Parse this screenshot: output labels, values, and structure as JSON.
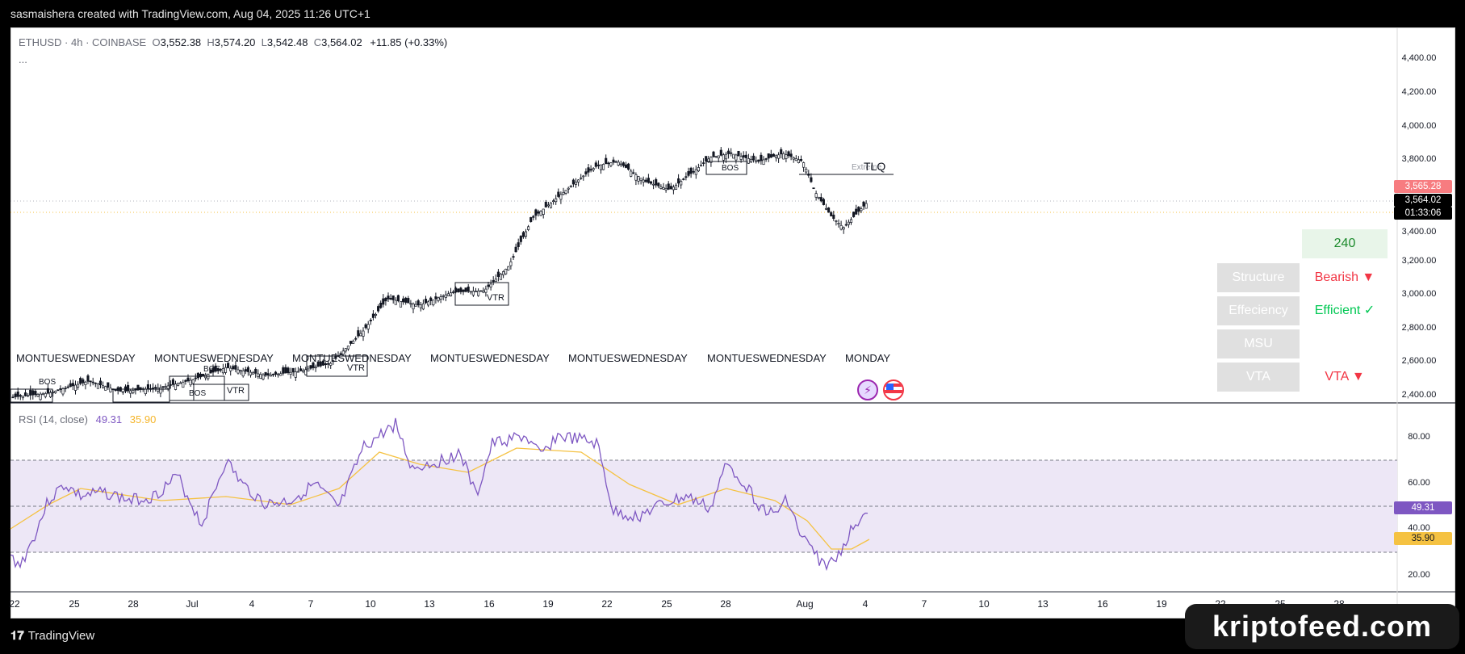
{
  "header": {
    "attribution": "sasmaishera created with TradingView.com, Aug 04, 2025 11:26 UTC+1"
  },
  "legend": {
    "symbol": "ETHUSD · 4h · COINBASE",
    "open_key": "O",
    "open": "3,552.38",
    "high_key": "H",
    "high": "3,574.20",
    "low_key": "L",
    "low": "3,542.48",
    "close_key": "C",
    "close": "3,564.02",
    "change": "+11.85 (+0.33%)",
    "more": "..."
  },
  "price_axis": {
    "labels": [
      "4,400.00",
      "4,200.00",
      "4,000.00",
      "3,800.00",
      "3,200.00",
      "3,000.00",
      "2,800.00",
      "2,600.00",
      "2,400.00"
    ],
    "tag_upper": "3,565.28",
    "tag_current": "3,564.02",
    "tag_countdown": "01:33:06",
    "hidden_label": "3,400.00"
  },
  "rsi": {
    "label": "RSI (14, close)",
    "rsi_value": "49.31",
    "ma_value": "35.90",
    "axis_labels": [
      "80.00",
      "60.00",
      "40.00",
      "20.00"
    ],
    "tag_rsi": "49.31",
    "tag_ma": "35.90"
  },
  "time_axis": {
    "labels": [
      "22",
      "25",
      "28",
      "Jul",
      "4",
      "7",
      "10",
      "13",
      "16",
      "19",
      "22",
      "25",
      "28",
      "Aug",
      "4",
      "7",
      "10",
      "13",
      "16",
      "19",
      "22",
      "25",
      "28"
    ]
  },
  "chart_annotations": {
    "bos": "BOS",
    "vtr": "VTR",
    "tlq": "TLQ",
    "extreme": "Extreme",
    "day_labels": [
      "MONTUESWEDNESDAY",
      "MONTUESWEDNESDAY",
      "MONTUESWEDNESDAY",
      "MONTUESWEDNESDAY",
      "MONTUESWEDNESDAY",
      "MONTUESWEDNESDAY",
      "MONDAY"
    ]
  },
  "info_table": {
    "timeframe": "240",
    "rows": [
      {
        "label": "Structure",
        "value": "Bearish ▼",
        "color": "#f23645"
      },
      {
        "label": "Effeciency",
        "value": "Efficient ✓",
        "color": "#089981"
      },
      {
        "label": "MSU",
        "value": "",
        "color": "#131722"
      },
      {
        "label": "VTA",
        "value": "VTA ▼",
        "color": "#f23645"
      }
    ]
  },
  "footer": {
    "brand": "TradingView",
    "watermark": "kriptofeed.com"
  },
  "colors": {
    "rsi_line": "#7e57c2",
    "rsi_ma": "#f5c242",
    "rsi_band": "#ede7f6",
    "bearish": "#f23645",
    "bullish": "#089981",
    "price_tag_red": "#f77c80",
    "price_tag_black": "#000000"
  }
}
